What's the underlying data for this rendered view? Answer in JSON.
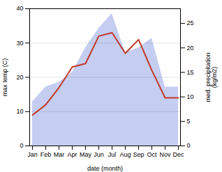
{
  "chart_data": {
    "type": "line",
    "xlabel": "date (month)",
    "ylabel": "max temp (C)",
    "y2label": "med. precipitation\n(kg/m2)",
    "categories": [
      "Jan",
      "Feb",
      "Mar",
      "Apr",
      "May",
      "Jun",
      "Jul",
      "Aug",
      "Sep",
      "Oct",
      "Nov",
      "Dec"
    ],
    "series": [
      {
        "type": "area",
        "axis": "y2",
        "color": "#c5cdf0",
        "values": [
          9,
          12,
          13,
          15,
          20,
          24,
          27,
          19,
          20,
          22,
          12,
          12
        ]
      },
      {
        "type": "line",
        "color": "#c0392b",
        "values": [
          9,
          12,
          17,
          23,
          24,
          32,
          33,
          27,
          31,
          22,
          14,
          14
        ]
      }
    ],
    "ylim": [
      0,
      40
    ],
    "yticks": [
      0,
      10,
      20,
      30,
      40
    ],
    "y2lim": [
      0,
      28
    ],
    "y2ticks": [
      0,
      5,
      10,
      15,
      20,
      25
    ],
    "grid": true
  }
}
